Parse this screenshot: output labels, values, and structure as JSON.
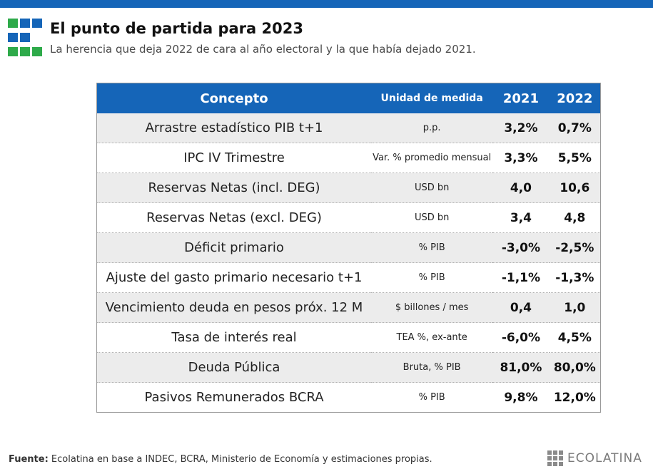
{
  "header": {
    "title": "El punto de partida para 2023",
    "subtitle": "La herencia que deja 2022 de cara al año electoral y la que había dejado 2021."
  },
  "colors": {
    "accent": "#1565b8",
    "logo_green": "#2eaa4a",
    "logo_blue": "#1565b8",
    "row_shade": "#ececec"
  },
  "table": {
    "headers": [
      "Concepto",
      "Unidad de medida",
      "2021",
      "2022"
    ],
    "rows": [
      [
        "Arrastre estadístico PIB t+1",
        "p.p.",
        "3,2%",
        "0,7%"
      ],
      [
        "IPC IV Trimestre",
        "Var. % promedio mensual",
        "3,3%",
        "5,5%"
      ],
      [
        "Reservas Netas (incl. DEG)",
        "USD bn",
        "4,0",
        "10,6"
      ],
      [
        "Reservas Netas (excl. DEG)",
        "USD bn",
        "3,4",
        "4,8"
      ],
      [
        "Déficit primario",
        "% PIB",
        "-3,0%",
        "-2,5%"
      ],
      [
        "Ajuste del gasto primario necesario t+1",
        "% PIB",
        "-1,1%",
        "-1,3%"
      ],
      [
        "Vencimiento deuda en pesos próx. 12 M",
        "$ billones / mes",
        "0,4",
        "1,0"
      ],
      [
        "Tasa de interés real",
        "TEA %, ex-ante",
        "-6,0%",
        "4,5%"
      ],
      [
        "Deuda Pública",
        "Bruta, % PIB",
        "81,0%",
        "80,0%"
      ],
      [
        "Pasivos Remunerados BCRA",
        "% PIB",
        "9,8%",
        "12,0%"
      ]
    ]
  },
  "footer": {
    "source_label": "Fuente:",
    "source_text": " Ecolatina en base a INDEC, BCRA, Ministerio de Economía y estimaciones propias.",
    "brand_name": "ECOLATINA"
  }
}
